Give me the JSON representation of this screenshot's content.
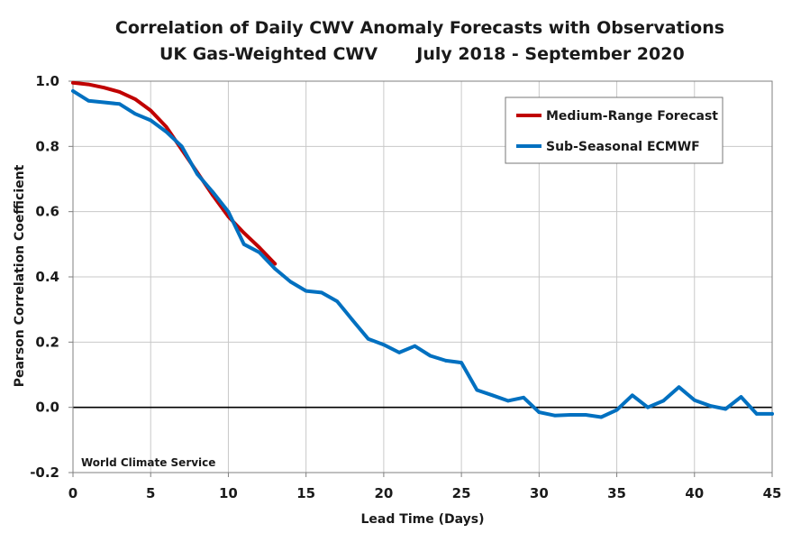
{
  "chart_data": {
    "type": "line",
    "title": "Correlation of Daily CWV Anomaly Forecasts with Observations",
    "subtitle_left": "UK Gas-Weighted CWV",
    "subtitle_right": "July 2018 - September 2020",
    "xlabel": "Lead Time (Days)",
    "ylabel": "Pearson Correlation Coefficient",
    "xlim": [
      0,
      45
    ],
    "ylim": [
      -0.2,
      1.0
    ],
    "xticks": [
      0,
      5,
      10,
      15,
      20,
      25,
      30,
      35,
      40,
      45
    ],
    "yticks": [
      -0.2,
      0.0,
      0.2,
      0.4,
      0.6,
      0.8,
      1.0
    ],
    "ytick_labels": [
      "-0.2",
      "0.0",
      "0.2",
      "0.4",
      "0.6",
      "0.8",
      "1.0"
    ],
    "xtick_labels": [
      "0",
      "5",
      "10",
      "15",
      "20",
      "25",
      "30",
      "35",
      "40",
      "45"
    ],
    "grid": true,
    "zero_line": true,
    "legend_position": "top-right",
    "annotation": "World Climate Service",
    "series": [
      {
        "name": "Medium-Range Forecast",
        "color": "#c00000",
        "x": [
          0,
          1,
          2,
          3,
          4,
          5,
          6,
          7,
          8,
          9,
          10,
          11,
          12,
          13
        ],
        "y": [
          0.995,
          0.99,
          0.98,
          0.967,
          0.945,
          0.91,
          0.86,
          0.79,
          0.72,
          0.65,
          0.585,
          0.535,
          0.49,
          0.44
        ]
      },
      {
        "name": "Sub-Seasonal ECMWF",
        "color": "#0070c0",
        "x": [
          0,
          1,
          2,
          3,
          4,
          5,
          6,
          7,
          8,
          9,
          10,
          11,
          12,
          13,
          14,
          15,
          16,
          17,
          18,
          19,
          20,
          21,
          22,
          23,
          24,
          25,
          26,
          27,
          28,
          29,
          30,
          31,
          32,
          33,
          34,
          35,
          36,
          37,
          38,
          39,
          40,
          41,
          42,
          43,
          44,
          45
        ],
        "y": [
          0.97,
          0.94,
          0.935,
          0.93,
          0.9,
          0.88,
          0.845,
          0.8,
          0.715,
          0.66,
          0.6,
          0.5,
          0.475,
          0.425,
          0.385,
          0.357,
          0.352,
          0.325,
          0.267,
          0.21,
          0.192,
          0.168,
          0.188,
          0.158,
          0.143,
          0.137,
          0.053,
          0.037,
          0.02,
          0.03,
          -0.015,
          -0.025,
          -0.023,
          -0.023,
          -0.03,
          -0.008,
          0.037,
          0.0,
          0.02,
          0.062,
          0.022,
          0.005,
          -0.005,
          0.032,
          -0.02,
          -0.02
        ]
      }
    ]
  }
}
